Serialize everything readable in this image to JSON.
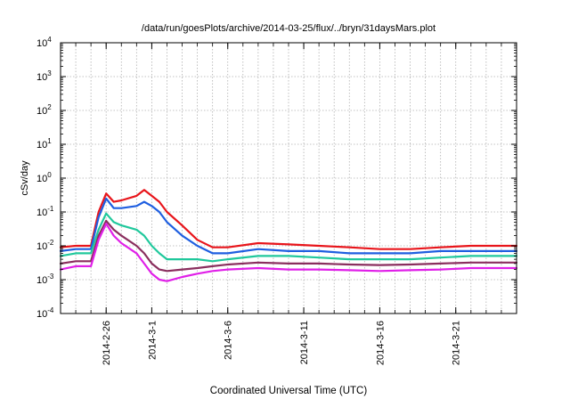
{
  "chart_data": {
    "type": "line",
    "title": "/data/run/goesPlots/archive/2014-03-25/flux/../bryn/31daysMars.plot",
    "xlabel": "Coordinated Universal Time (UTC)",
    "ylabel": "cSv/day",
    "y_scale": "log",
    "ylim": [
      0.0001,
      10000
    ],
    "xlim": [
      "2014-02-23",
      "2014-03-25"
    ],
    "x_ticks": [
      "2014-2-26",
      "2014-3-1",
      "2014-3-6",
      "2014-3-11",
      "2014-3-16",
      "2014-3-21"
    ],
    "x_tick_dates": [
      "2014-02-26",
      "2014-03-01",
      "2014-03-06",
      "2014-03-11",
      "2014-03-16",
      "2014-03-21"
    ],
    "y_ticks": [
      {
        "base": "10",
        "exp": "-4"
      },
      {
        "base": "10",
        "exp": "-3"
      },
      {
        "base": "10",
        "exp": "-2"
      },
      {
        "base": "10",
        "exp": "-1"
      },
      {
        "base": "10",
        "exp": "0"
      },
      {
        "base": "10",
        "exp": "1"
      },
      {
        "base": "10",
        "exp": "2"
      },
      {
        "base": "10",
        "exp": "3"
      },
      {
        "base": "10",
        "exp": "4"
      }
    ],
    "grid": true,
    "legend": "none",
    "series": [
      {
        "color": "#e8151b",
        "x": [
          "2014-02-23",
          "2014-02-24",
          "2014-02-25",
          "2014-02-25T12",
          "2014-02-26",
          "2014-02-26T12",
          "2014-02-27",
          "2014-02-28",
          "2014-02-28T12",
          "2014-03-01",
          "2014-03-01T12",
          "2014-03-02",
          "2014-03-03",
          "2014-03-04",
          "2014-03-05",
          "2014-03-06",
          "2014-03-08",
          "2014-03-10",
          "2014-03-12",
          "2014-03-14",
          "2014-03-16",
          "2014-03-18",
          "2014-03-20",
          "2014-03-22",
          "2014-03-24",
          "2014-03-25"
        ],
        "values": [
          0.009,
          0.01,
          0.01,
          0.1,
          0.35,
          0.2,
          0.22,
          0.3,
          0.45,
          0.3,
          0.2,
          0.1,
          0.04,
          0.015,
          0.009,
          0.009,
          0.012,
          0.011,
          0.01,
          0.009,
          0.008,
          0.008,
          0.009,
          0.01,
          0.01,
          0.01
        ]
      },
      {
        "color": "#1f5fe0",
        "x": [
          "2014-02-23",
          "2014-02-24",
          "2014-02-25",
          "2014-02-25T12",
          "2014-02-26",
          "2014-02-26T12",
          "2014-02-27",
          "2014-02-28",
          "2014-02-28T12",
          "2014-03-01",
          "2014-03-01T12",
          "2014-03-02",
          "2014-03-03",
          "2014-03-04",
          "2014-03-05",
          "2014-03-06",
          "2014-03-08",
          "2014-03-10",
          "2014-03-12",
          "2014-03-14",
          "2014-03-16",
          "2014-03-18",
          "2014-03-20",
          "2014-03-22",
          "2014-03-24",
          "2014-03-25"
        ],
        "values": [
          0.007,
          0.008,
          0.008,
          0.07,
          0.25,
          0.13,
          0.13,
          0.15,
          0.2,
          0.15,
          0.1,
          0.05,
          0.02,
          0.01,
          0.006,
          0.006,
          0.008,
          0.007,
          0.007,
          0.006,
          0.006,
          0.006,
          0.007,
          0.007,
          0.007,
          0.007
        ]
      },
      {
        "color": "#20c89c",
        "x": [
          "2014-02-23",
          "2014-02-24",
          "2014-02-25",
          "2014-02-25T12",
          "2014-02-26",
          "2014-02-26T12",
          "2014-02-27",
          "2014-02-28",
          "2014-02-28T12",
          "2014-03-01",
          "2014-03-01T12",
          "2014-03-02",
          "2014-03-03",
          "2014-03-04",
          "2014-03-05",
          "2014-03-06",
          "2014-03-08",
          "2014-03-10",
          "2014-03-12",
          "2014-03-14",
          "2014-03-16",
          "2014-03-18",
          "2014-03-20",
          "2014-03-22",
          "2014-03-24",
          "2014-03-25"
        ],
        "values": [
          0.005,
          0.006,
          0.006,
          0.03,
          0.09,
          0.05,
          0.04,
          0.03,
          0.02,
          0.01,
          0.006,
          0.004,
          0.004,
          0.004,
          0.0035,
          0.004,
          0.005,
          0.005,
          0.0045,
          0.004,
          0.004,
          0.004,
          0.0045,
          0.005,
          0.005,
          0.005
        ]
      },
      {
        "color": "#8a2e5e",
        "x": [
          "2014-02-23",
          "2014-02-24",
          "2014-02-25",
          "2014-02-25T12",
          "2014-02-26",
          "2014-02-26T12",
          "2014-02-27",
          "2014-02-28",
          "2014-02-28T12",
          "2014-03-01",
          "2014-03-01T12",
          "2014-03-02",
          "2014-03-03",
          "2014-03-04",
          "2014-03-05",
          "2014-03-06",
          "2014-03-08",
          "2014-03-10",
          "2014-03-12",
          "2014-03-14",
          "2014-03-16",
          "2014-03-18",
          "2014-03-20",
          "2014-03-22",
          "2014-03-24",
          "2014-03-25"
        ],
        "values": [
          0.003,
          0.0035,
          0.0035,
          0.02,
          0.055,
          0.03,
          0.02,
          0.01,
          0.006,
          0.003,
          0.002,
          0.0018,
          0.002,
          0.0022,
          0.0025,
          0.0028,
          0.0032,
          0.003,
          0.003,
          0.0028,
          0.0027,
          0.0028,
          0.003,
          0.0032,
          0.0032,
          0.0032
        ]
      },
      {
        "color": "#e020e8",
        "x": [
          "2014-02-23",
          "2014-02-24",
          "2014-02-25",
          "2014-02-25T12",
          "2014-02-26",
          "2014-02-26T12",
          "2014-02-27",
          "2014-02-28",
          "2014-02-28T12",
          "2014-03-01",
          "2014-03-01T12",
          "2014-03-02",
          "2014-03-03",
          "2014-03-04",
          "2014-03-05",
          "2014-03-06",
          "2014-03-08",
          "2014-03-10",
          "2014-03-12",
          "2014-03-14",
          "2014-03-16",
          "2014-03-18",
          "2014-03-20",
          "2014-03-22",
          "2014-03-24",
          "2014-03-25"
        ],
        "values": [
          0.002,
          0.0025,
          0.0025,
          0.015,
          0.045,
          0.02,
          0.012,
          0.006,
          0.003,
          0.0015,
          0.001,
          0.0009,
          0.0012,
          0.0015,
          0.0018,
          0.002,
          0.0022,
          0.002,
          0.002,
          0.0019,
          0.0018,
          0.0019,
          0.002,
          0.0022,
          0.0022,
          0.0022
        ]
      }
    ]
  }
}
